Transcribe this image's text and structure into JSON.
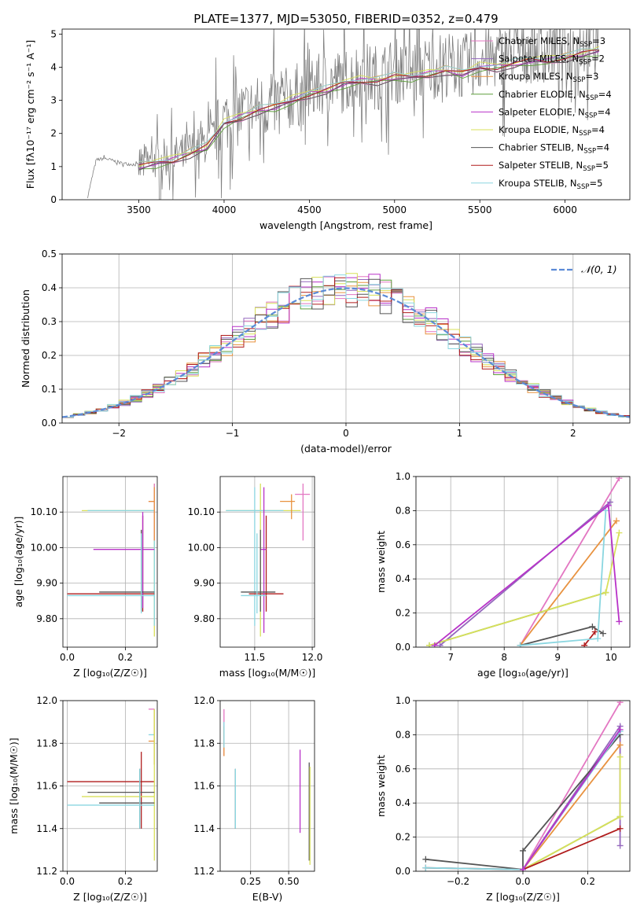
{
  "figure": {
    "title": "PLATE=1377, MJD=53050, FIBERID=0352, z=0.479"
  },
  "series": [
    {
      "key": "cm",
      "label": "Chabrier MILES, N",
      "sub": "SSP",
      "suffix": "=3",
      "color": "#e377c2"
    },
    {
      "key": "sm",
      "label": "Salpeter MILES, N",
      "sub": "SSP",
      "suffix": "=2",
      "color": "#9467bd"
    },
    {
      "key": "km",
      "label": "Kroupa MILES, N",
      "sub": "SSP",
      "suffix": "=3",
      "color": "#e8923f"
    },
    {
      "key": "ce",
      "label": "Chabrier ELODIE, N",
      "sub": "SSP",
      "suffix": "=4",
      "color": "#5e9e3c"
    },
    {
      "key": "se",
      "label": "Salpeter ELODIE, N",
      "sub": "SSP",
      "suffix": "=4",
      "color": "#b832c8"
    },
    {
      "key": "ke",
      "label": "Kroupa ELODIE, N",
      "sub": "SSP",
      "suffix": "=4",
      "color": "#d8e05a"
    },
    {
      "key": "cs",
      "label": "Chabrier STELIB, N",
      "sub": "SSP",
      "suffix": "=4",
      "color": "#555555"
    },
    {
      "key": "ss",
      "label": "Salpeter STELIB, N",
      "sub": "SSP",
      "suffix": "=5",
      "color": "#b01c1c"
    },
    {
      "key": "ks",
      "label": "Kroupa STELIB, N",
      "sub": "SSP",
      "suffix": "=5",
      "color": "#8ad6e0"
    }
  ],
  "chart_data": [
    {
      "id": "spectrum",
      "type": "line",
      "xlabel": "wavelength [Angstrom, rest frame]",
      "ylabel": "Flux [fλ10⁻¹⁷ erg cm⁻² s⁻¹ A⁻¹]",
      "xlim": [
        3050,
        6380
      ],
      "ylim": [
        0,
        5.15
      ],
      "xticks": [
        3500,
        4000,
        4500,
        5000,
        5500,
        6000
      ],
      "yticks": [
        0,
        1,
        2,
        3,
        4,
        5
      ],
      "data_color": "#808080",
      "data_x": [
        3200,
        3250,
        3300,
        3400,
        3500,
        3600,
        3700,
        3800,
        3900,
        3950,
        4000,
        4100,
        4200,
        4300,
        4400,
        4500,
        4600,
        4700,
        4800,
        4900,
        5000,
        5100,
        5200,
        5300,
        5400,
        5500,
        5600,
        5700,
        5800,
        5900,
        6000,
        6100,
        6200
      ],
      "data_y": [
        0.1,
        1.2,
        1.25,
        1.1,
        1.05,
        1.2,
        1.3,
        1.5,
        1.7,
        2.0,
        2.4,
        2.6,
        2.8,
        2.9,
        3.1,
        3.3,
        3.5,
        3.6,
        3.8,
        3.7,
        3.9,
        3.8,
        4.0,
        4.1,
        4.0,
        4.2,
        4.3,
        4.4,
        4.5,
        4.5,
        4.6,
        4.7,
        4.8
      ],
      "model_x": [
        3500,
        3600,
        3700,
        3800,
        3900,
        4000,
        4100,
        4200,
        4300,
        4400,
        4500,
        4600,
        4700,
        4800,
        4900,
        5000,
        5100,
        5200,
        5300,
        5400,
        5500,
        5600,
        5700,
        5800,
        5900,
        6000,
        6100,
        6200
      ],
      "model_y": [
        1.0,
        1.1,
        1.2,
        1.4,
        1.6,
        2.3,
        2.5,
        2.7,
        2.8,
        3.0,
        3.2,
        3.3,
        3.5,
        3.6,
        3.6,
        3.7,
        3.7,
        3.8,
        3.9,
        3.8,
        4.0,
        4.0,
        4.1,
        4.2,
        4.2,
        4.3,
        4.4,
        4.5
      ]
    },
    {
      "id": "residuals",
      "type": "step",
      "xlabel": "(data-model)/error",
      "ylabel": "Normed distribution",
      "xlim": [
        -2.5,
        2.5
      ],
      "ylim": [
        0,
        0.5
      ],
      "xticks": [
        -2,
        -1,
        0,
        1,
        2
      ],
      "yticks": [
        0.0,
        0.1,
        0.2,
        0.3,
        0.4,
        0.5
      ],
      "bin_edges_start": -2.5,
      "bin_width": 0.1,
      "reference_label": "𝒩(0, 1)",
      "reference_color": "#5b8ad6"
    },
    {
      "id": "age-vs-Z",
      "type": "errorbar",
      "xlabel": "Z [log₁₀(Z/Z☉)]",
      "ylabel": "age  [log₁₀(age/yr)]",
      "xlim": [
        -0.015,
        0.31
      ],
      "ylim": [
        9.72,
        10.2
      ],
      "xticks": [
        0.0,
        0.2
      ],
      "yticks": [
        9.8,
        9.9,
        10.0,
        10.1
      ],
      "points": [
        {
          "s": "ke",
          "x": 0.3,
          "y": 10.104,
          "xl": 0.05,
          "xh": 0.3,
          "yl": 9.75,
          "yh": 10.18
        },
        {
          "s": "ks",
          "x": 0.3,
          "y": 10.104,
          "xl": 0.07,
          "xh": 0.3,
          "yl": 9.78,
          "yh": 10.17
        },
        {
          "s": "cm",
          "x": 0.3,
          "y": 10.13,
          "xl": 0.28,
          "xh": 0.3,
          "yl": 10.02,
          "yh": 10.18
        },
        {
          "s": "km",
          "x": 0.3,
          "y": 10.13,
          "xl": 0.28,
          "xh": 0.3,
          "yl": 10.02,
          "yh": 10.17
        },
        {
          "s": "ss",
          "x": 0.26,
          "y": 9.87,
          "xl": 0.0,
          "xh": 0.3,
          "yl": 9.82,
          "yh": 10.09
        },
        {
          "s": "se",
          "x": 0.26,
          "y": 9.995,
          "xl": 0.09,
          "xh": 0.3,
          "yl": 9.83,
          "yh": 10.1
        },
        {
          "s": "cs",
          "x": 0.255,
          "y": 9.875,
          "xl": 0.11,
          "xh": 0.3,
          "yl": 9.82,
          "yh": 10.05
        },
        {
          "s": "ks",
          "x": 0.255,
          "y": 9.865,
          "xl": 0.0,
          "xh": 0.3,
          "yl": 9.815,
          "yh": 10.04
        }
      ]
    },
    {
      "id": "age-vs-mass",
      "type": "errorbar",
      "xlabel": "mass [log₁₀(M/M☉)]",
      "ylabel": "",
      "xlim": [
        11.2,
        12.02
      ],
      "ylim": [
        9.72,
        10.2
      ],
      "xticks": [
        11.5,
        12.0
      ],
      "yticks": [
        9.8,
        9.9,
        10.0,
        10.1
      ],
      "points": [
        {
          "s": "ke",
          "x": 11.55,
          "y": 10.104,
          "xl": 11.25,
          "xh": 11.9,
          "yl": 9.75,
          "yh": 10.18
        },
        {
          "s": "ks",
          "x": 11.5,
          "y": 10.104,
          "xl": 11.25,
          "xh": 11.75,
          "yl": 9.78,
          "yh": 10.17
        },
        {
          "s": "cm",
          "x": 11.92,
          "y": 10.15,
          "xl": 11.85,
          "xh": 11.98,
          "yl": 10.02,
          "yh": 10.18
        },
        {
          "s": "km",
          "x": 11.82,
          "y": 10.13,
          "xl": 11.72,
          "xh": 11.85,
          "yl": 10.08,
          "yh": 10.15
        },
        {
          "s": "ss",
          "x": 11.6,
          "y": 9.87,
          "xl": 11.45,
          "xh": 11.75,
          "yl": 9.82,
          "yh": 10.09
        },
        {
          "s": "se",
          "x": 11.58,
          "y": 9.995,
          "xl": 11.55,
          "xh": 11.6,
          "yl": 9.76,
          "yh": 10.17
        },
        {
          "s": "cs",
          "x": 11.55,
          "y": 9.875,
          "xl": 11.38,
          "xh": 11.68,
          "yl": 9.82,
          "yh": 10.05
        },
        {
          "s": "ks",
          "x": 11.52,
          "y": 9.865,
          "xl": 11.38,
          "xh": 11.6,
          "yl": 9.815,
          "yh": 10.04
        }
      ]
    },
    {
      "id": "weight-vs-age",
      "type": "line",
      "xlabel": "age  [log₁₀(age/yr)]",
      "ylabel": "mass weight",
      "xlim": [
        6.35,
        10.35
      ],
      "ylim": [
        0,
        1
      ],
      "xticks": [
        7,
        8,
        9,
        10
      ],
      "yticks": [
        0.0,
        0.2,
        0.4,
        0.6,
        0.8,
        1.0
      ],
      "lines": [
        {
          "s": "cm",
          "x": [
            8.3,
            10.15
          ],
          "y": [
            0.01,
            0.99
          ]
        },
        {
          "s": "sm",
          "x": [
            6.8,
            9.98
          ],
          "y": [
            0.01,
            0.85
          ]
        },
        {
          "s": "km",
          "x": [
            8.3,
            10.1
          ],
          "y": [
            0.01,
            0.74
          ]
        },
        {
          "s": "ce",
          "x": [
            6.6,
            9.9
          ],
          "y": [
            0.01,
            0.32
          ]
        },
        {
          "s": "ke",
          "x": [
            6.6,
            9.9,
            10.15
          ],
          "y": [
            0.01,
            0.32,
            0.67
          ]
        },
        {
          "s": "cs",
          "x": [
            8.3,
            9.65,
            9.85
          ],
          "y": [
            0.01,
            0.12,
            0.08
          ]
        },
        {
          "s": "ss",
          "x": [
            9.5,
            9.7
          ],
          "y": [
            0.01,
            0.09
          ]
        },
        {
          "s": "ks",
          "x": [
            8.3,
            9.75,
            9.9
          ],
          "y": [
            0.01,
            0.05,
            0.8
          ]
        },
        {
          "s": "se",
          "x": [
            6.7,
            9.95,
            10.15
          ],
          "y": [
            0.01,
            0.83,
            0.15
          ]
        }
      ]
    },
    {
      "id": "mass-vs-Z",
      "type": "errorbar",
      "xlabel": "Z [log₁₀(Z/Z☉)]",
      "ylabel": "mass [log₁₀(M/M☉)]",
      "xlim": [
        -0.015,
        0.31
      ],
      "ylim": [
        11.2,
        12.0
      ],
      "xticks": [
        0.0,
        0.2
      ],
      "yticks": [
        11.2,
        11.4,
        11.6,
        11.8,
        12.0
      ],
      "points": [
        {
          "s": "cm",
          "x": 0.3,
          "y": 11.96,
          "xl": 0.28,
          "xh": 0.3,
          "yl": 11.7,
          "yh": 11.96
        },
        {
          "s": "ks",
          "x": 0.3,
          "y": 11.84,
          "xl": 0.28,
          "xh": 0.3,
          "yl": 11.7,
          "yh": 11.96
        },
        {
          "s": "km",
          "x": 0.3,
          "y": 11.81,
          "xl": 0.28,
          "xh": 0.3,
          "yl": 11.7,
          "yh": 11.96
        },
        {
          "s": "ss",
          "x": 0.255,
          "y": 11.62,
          "xl": 0.0,
          "xh": 0.3,
          "yl": 11.4,
          "yh": 11.76
        },
        {
          "s": "ke",
          "x": 0.3,
          "y": 11.55,
          "xl": 0.05,
          "xh": 0.3,
          "yl": 11.25,
          "yh": 11.96
        },
        {
          "s": "cs",
          "x": 0.25,
          "y": 11.57,
          "xl": 0.07,
          "xh": 0.3,
          "yl": 11.4,
          "yh": 11.68
        },
        {
          "s": "cs",
          "x": 0.25,
          "y": 11.52,
          "xl": 0.11,
          "xh": 0.3,
          "yl": 11.4,
          "yh": 11.68
        },
        {
          "s": "ks",
          "x": 0.25,
          "y": 11.51,
          "xl": 0.0,
          "xh": 0.3,
          "yl": 11.4,
          "yh": 11.68
        }
      ]
    },
    {
      "id": "mass-vs-EBV",
      "type": "errorbar",
      "xlabel": "E(B-V)",
      "ylabel": "",
      "xlim": [
        0.05,
        0.67
      ],
      "ylim": [
        11.2,
        12.0
      ],
      "xticks": [
        0.25,
        0.5
      ],
      "yticks": [
        11.2,
        11.4,
        11.6,
        11.8,
        12.0
      ],
      "points": [
        {
          "s": "cm",
          "x": 0.075,
          "y": 11.86,
          "xl": 0.075,
          "xh": 0.075,
          "yl": 11.74,
          "yh": 11.96
        },
        {
          "s": "km",
          "x": 0.075,
          "y": 11.8,
          "xl": 0.075,
          "xh": 0.075,
          "yl": 11.74,
          "yh": 11.88
        },
        {
          "s": "ks",
          "x": 0.075,
          "y": 11.84,
          "xl": 0.075,
          "xh": 0.075,
          "yl": 11.78,
          "yh": 11.9
        },
        {
          "s": "cs",
          "x": 0.15,
          "y": 11.55,
          "xl": 0.15,
          "xh": 0.15,
          "yl": 11.4,
          "yh": 11.68
        },
        {
          "s": "ks",
          "x": 0.15,
          "y": 11.5,
          "xl": 0.15,
          "xh": 0.15,
          "yl": 11.4,
          "yh": 11.68
        },
        {
          "s": "se",
          "x": 0.575,
          "y": 11.58,
          "xl": 0.575,
          "xh": 0.575,
          "yl": 11.38,
          "yh": 11.77
        },
        {
          "s": "cs",
          "x": 0.635,
          "y": 11.55,
          "xl": 0.635,
          "xh": 0.635,
          "yl": 11.25,
          "yh": 11.71
        },
        {
          "s": "ke",
          "x": 0.64,
          "y": 11.5,
          "xl": 0.64,
          "xh": 0.64,
          "yl": 11.23,
          "yh": 11.69
        }
      ]
    },
    {
      "id": "weight-vs-Z",
      "type": "line",
      "xlabel": "Z [log₁₀(Z/Z☉)]",
      "ylabel": "mass weight",
      "xlim": [
        -0.33,
        0.33
      ],
      "ylim": [
        0,
        1
      ],
      "xticks": [
        -0.2,
        0.0,
        0.2
      ],
      "yticks": [
        0.0,
        0.2,
        0.4,
        0.6,
        0.8,
        1.0
      ],
      "lines": [
        {
          "s": "cm",
          "x": [
            0.0,
            0.3
          ],
          "y": [
            0.01,
            0.99
          ]
        },
        {
          "s": "sm",
          "x": [
            0.0,
            0.3,
            0.3
          ],
          "y": [
            0.01,
            0.85,
            0.15
          ]
        },
        {
          "s": "km",
          "x": [
            0.0,
            0.3
          ],
          "y": [
            0.01,
            0.74
          ]
        },
        {
          "s": "ce",
          "x": [
            0.0,
            0.3
          ],
          "y": [
            0.01,
            0.32
          ]
        },
        {
          "s": "ke",
          "x": [
            0.0,
            0.3,
            0.3
          ],
          "y": [
            0.01,
            0.32,
            0.67
          ]
        },
        {
          "s": "cs",
          "x": [
            -0.3,
            0.0,
            0.0,
            0.3
          ],
          "y": [
            0.07,
            0.01,
            0.12,
            0.8
          ]
        },
        {
          "s": "ss",
          "x": [
            -0.3,
            0.0,
            0.3
          ],
          "y": [
            0.02,
            0.01,
            0.25
          ]
        },
        {
          "s": "ks",
          "x": [
            -0.3,
            0.0,
            0.3
          ],
          "y": [
            0.02,
            0.01,
            0.82
          ]
        },
        {
          "s": "se",
          "x": [
            0.0,
            0.3
          ],
          "y": [
            0.01,
            0.83
          ]
        }
      ]
    }
  ]
}
